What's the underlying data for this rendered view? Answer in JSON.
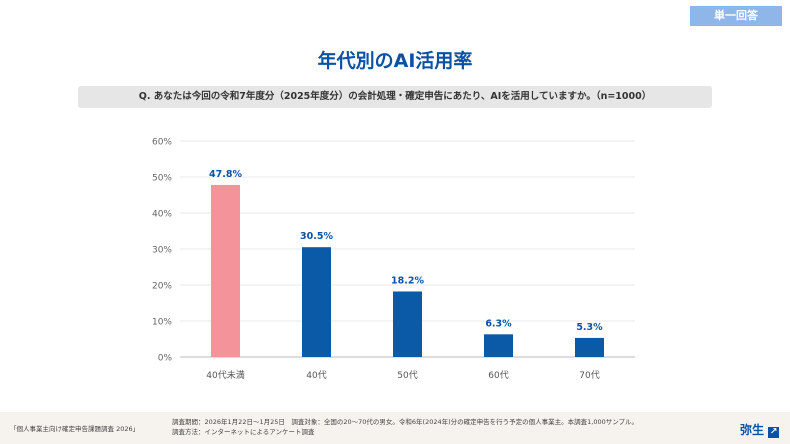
{
  "badge": "単一回答",
  "title": "年代別のAI活用率",
  "question": "Q. あなたは今回の令和7年度分（2025年度分）の会計処理・確定申告にあたり、AIを活用していますか。（n=1000）",
  "chart_data": {
    "type": "bar",
    "categories": [
      "40代未満",
      "40代",
      "50代",
      "60代",
      "70代"
    ],
    "values": [
      47.8,
      30.5,
      18.2,
      6.3,
      5.3
    ],
    "data_labels": [
      "47.8%",
      "30.5%",
      "18.2%",
      "6.3%",
      "5.3%"
    ],
    "ylim": [
      0,
      60
    ],
    "yticks": [
      "0%",
      "10%",
      "20%",
      "30%",
      "40%",
      "50%",
      "60%"
    ],
    "grid": true,
    "colors": [
      "#f4939a",
      "#0a5aa8",
      "#0a5aa8",
      "#0a5aa8",
      "#0a5aa8"
    ]
  },
  "footer": {
    "source": "「個人事業主向け確定申告課題調査 2026」",
    "line1": "調査期間：2026年1月22日〜1月25日　調査対象：全国の20〜70代の男女。令和6年(2024年)分の確定申告を行う予定の個人事業主。本調査1,000サンプル。",
    "line2": "調査方法：インターネットによるアンケート調査",
    "logo": "弥生"
  }
}
